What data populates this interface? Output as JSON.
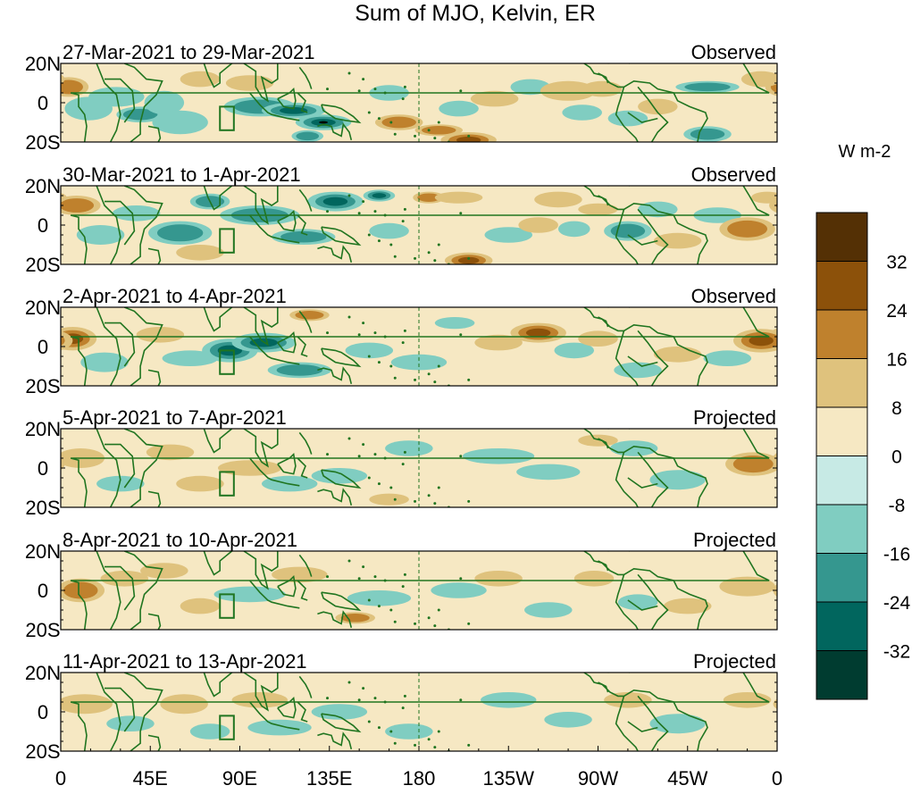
{
  "chart_data": {
    "type": "heatmap",
    "title": "Sum of MJO, Kelvin, ER",
    "panels": [
      {
        "date_range": "27-Mar-2021 to 29-Mar-2021",
        "status": "Observed"
      },
      {
        "date_range": "30-Mar-2021 to 1-Apr-2021",
        "status": "Observed"
      },
      {
        "date_range": "2-Apr-2021 to 4-Apr-2021",
        "status": "Observed"
      },
      {
        "date_range": "5-Apr-2021 to 7-Apr-2021",
        "status": "Projected"
      },
      {
        "date_range": "8-Apr-2021 to 10-Apr-2021",
        "status": "Projected"
      },
      {
        "date_range": "11-Apr-2021 to 13-Apr-2021",
        "status": "Projected"
      }
    ],
    "lat_ticks": [
      "20N",
      "0",
      "20S"
    ],
    "lon_ticks": [
      "0",
      "45E",
      "90E",
      "135E",
      "180",
      "135W",
      "90W",
      "45W",
      "0"
    ],
    "lat_range": [
      -20,
      20
    ],
    "lon_range": [
      0,
      360
    ],
    "colorbar": {
      "units": "W m-2",
      "tick_labels": [
        "32",
        "24",
        "16",
        "8",
        "0",
        "-8",
        "-16",
        "-24",
        "-32"
      ],
      "colors": [
        "#543005",
        "#8c510a",
        "#bf812d",
        "#dfc27d",
        "#f6e8c3",
        "#c7eae5",
        "#80cdc1",
        "#35978f",
        "#01665e",
        "#003c30"
      ]
    },
    "blobs": [
      [
        [
          4,
          8,
          10,
          5,
          2
        ],
        [
          14,
          -3,
          12,
          6,
          -1
        ],
        [
          28,
          3,
          14,
          5,
          -1
        ],
        [
          40,
          -6,
          12,
          4,
          -2
        ],
        [
          52,
          0,
          10,
          6,
          -1
        ],
        [
          60,
          -10,
          14,
          6,
          -1
        ],
        [
          70,
          12,
          10,
          4,
          1
        ],
        [
          95,
          10,
          12,
          4,
          1
        ],
        [
          100,
          -2,
          18,
          5,
          -2
        ],
        [
          117,
          -4,
          16,
          4,
          -3
        ],
        [
          132,
          -10,
          14,
          4,
          -4
        ],
        [
          124,
          -17,
          8,
          3,
          -2
        ],
        [
          170,
          -10,
          12,
          4,
          2
        ],
        [
          165,
          5,
          10,
          4,
          -1
        ],
        [
          190,
          -14,
          12,
          3,
          2
        ],
        [
          205,
          -19,
          14,
          4,
          3
        ],
        [
          200,
          -3,
          10,
          4,
          -1
        ],
        [
          218,
          2,
          12,
          4,
          1
        ],
        [
          236,
          8,
          10,
          4,
          -1
        ],
        [
          255,
          6,
          14,
          5,
          1
        ],
        [
          262,
          -5,
          10,
          4,
          -1
        ],
        [
          272,
          7,
          10,
          4,
          1
        ],
        [
          285,
          -8,
          10,
          4,
          -1
        ],
        [
          300,
          -2,
          10,
          4,
          1
        ],
        [
          325,
          8,
          16,
          3,
          -2
        ],
        [
          325,
          -16,
          12,
          4,
          -2
        ],
        [
          352,
          12,
          10,
          4,
          1
        ]
      ],
      [
        [
          8,
          10,
          12,
          5,
          2
        ],
        [
          20,
          -5,
          12,
          5,
          -1
        ],
        [
          38,
          6,
          12,
          4,
          -1
        ],
        [
          60,
          -4,
          16,
          6,
          -2
        ],
        [
          75,
          12,
          10,
          4,
          -2
        ],
        [
          70,
          -14,
          12,
          4,
          1
        ],
        [
          100,
          5,
          20,
          5,
          -2
        ],
        [
          122,
          -6,
          16,
          4,
          -2
        ],
        [
          138,
          12,
          14,
          5,
          -3
        ],
        [
          160,
          15,
          8,
          3,
          -3
        ],
        [
          165,
          -3,
          10,
          4,
          -1
        ],
        [
          185,
          14,
          8,
          3,
          2
        ],
        [
          200,
          14,
          12,
          3,
          1
        ],
        [
          205,
          -18,
          12,
          4,
          3
        ],
        [
          225,
          -5,
          12,
          4,
          -1
        ],
        [
          240,
          0,
          10,
          4,
          1
        ],
        [
          250,
          13,
          12,
          4,
          1
        ],
        [
          258,
          -2,
          8,
          4,
          -1
        ],
        [
          270,
          8,
          10,
          3,
          1
        ],
        [
          285,
          -3,
          12,
          5,
          -2
        ],
        [
          300,
          8,
          10,
          4,
          -1
        ],
        [
          310,
          -8,
          12,
          4,
          1
        ],
        [
          330,
          5,
          12,
          4,
          -1
        ],
        [
          345,
          -2,
          14,
          6,
          2
        ],
        [
          355,
          14,
          8,
          3,
          1
        ]
      ],
      [
        [
          6,
          4,
          12,
          6,
          3
        ],
        [
          22,
          -8,
          12,
          5,
          -1
        ],
        [
          50,
          6,
          12,
          4,
          1
        ],
        [
          65,
          -6,
          14,
          4,
          -1
        ],
        [
          85,
          -2,
          14,
          6,
          -3
        ],
        [
          102,
          2,
          16,
          5,
          -3
        ],
        [
          120,
          -12,
          16,
          4,
          -2
        ],
        [
          125,
          16,
          10,
          3,
          2
        ],
        [
          155,
          -2,
          12,
          4,
          -1
        ],
        [
          180,
          -8,
          14,
          4,
          -1
        ],
        [
          198,
          12,
          10,
          3,
          -1
        ],
        [
          220,
          2,
          12,
          4,
          1
        ],
        [
          240,
          7,
          14,
          5,
          3
        ],
        [
          258,
          -2,
          10,
          4,
          -1
        ],
        [
          270,
          4,
          10,
          4,
          1
        ],
        [
          290,
          -12,
          12,
          4,
          -1
        ],
        [
          310,
          -4,
          12,
          4,
          1
        ],
        [
          335,
          -6,
          12,
          4,
          -1
        ],
        [
          352,
          3,
          14,
          6,
          3
        ]
      ],
      [
        [
          10,
          5,
          12,
          5,
          1
        ],
        [
          30,
          -8,
          12,
          4,
          -1
        ],
        [
          55,
          8,
          12,
          4,
          1
        ],
        [
          70,
          -8,
          12,
          4,
          1
        ],
        [
          95,
          0,
          16,
          4,
          1
        ],
        [
          115,
          -8,
          14,
          4,
          -1
        ],
        [
          140,
          -4,
          14,
          4,
          -1
        ],
        [
          165,
          -16,
          10,
          3,
          1
        ],
        [
          175,
          10,
          12,
          4,
          -1
        ],
        [
          220,
          6,
          18,
          4,
          -1
        ],
        [
          245,
          -2,
          16,
          4,
          -1
        ],
        [
          270,
          14,
          10,
          3,
          1
        ],
        [
          288,
          10,
          12,
          4,
          -1
        ],
        [
          310,
          -6,
          14,
          5,
          -1
        ],
        [
          348,
          2,
          14,
          6,
          2
        ]
      ],
      [
        [
          10,
          0,
          12,
          6,
          2
        ],
        [
          32,
          6,
          12,
          4,
          1
        ],
        [
          52,
          10,
          12,
          4,
          1
        ],
        [
          70,
          -8,
          10,
          4,
          1
        ],
        [
          95,
          -2,
          18,
          4,
          -1
        ],
        [
          120,
          8,
          14,
          4,
          1
        ],
        [
          148,
          -14,
          10,
          3,
          2
        ],
        [
          160,
          -4,
          16,
          4,
          -1
        ],
        [
          200,
          0,
          14,
          4,
          -1
        ],
        [
          220,
          6,
          12,
          4,
          1
        ],
        [
          245,
          -10,
          12,
          4,
          -1
        ],
        [
          268,
          6,
          10,
          4,
          1
        ],
        [
          290,
          -6,
          10,
          4,
          -1
        ],
        [
          315,
          -8,
          12,
          4,
          1
        ],
        [
          345,
          2,
          14,
          5,
          1
        ]
      ],
      [
        [
          12,
          4,
          14,
          5,
          1
        ],
        [
          35,
          -6,
          12,
          4,
          -1
        ],
        [
          62,
          4,
          12,
          5,
          1
        ],
        [
          75,
          -10,
          10,
          4,
          -1
        ],
        [
          100,
          6,
          14,
          4,
          1
        ],
        [
          110,
          -8,
          16,
          4,
          -1
        ],
        [
          140,
          0,
          14,
          4,
          -1
        ],
        [
          175,
          -10,
          12,
          4,
          -1
        ],
        [
          225,
          6,
          14,
          4,
          -1
        ],
        [
          255,
          -4,
          12,
          4,
          -1
        ],
        [
          285,
          6,
          12,
          4,
          1
        ],
        [
          310,
          -6,
          14,
          5,
          -1
        ],
        [
          345,
          6,
          12,
          4,
          1
        ]
      ]
    ]
  }
}
